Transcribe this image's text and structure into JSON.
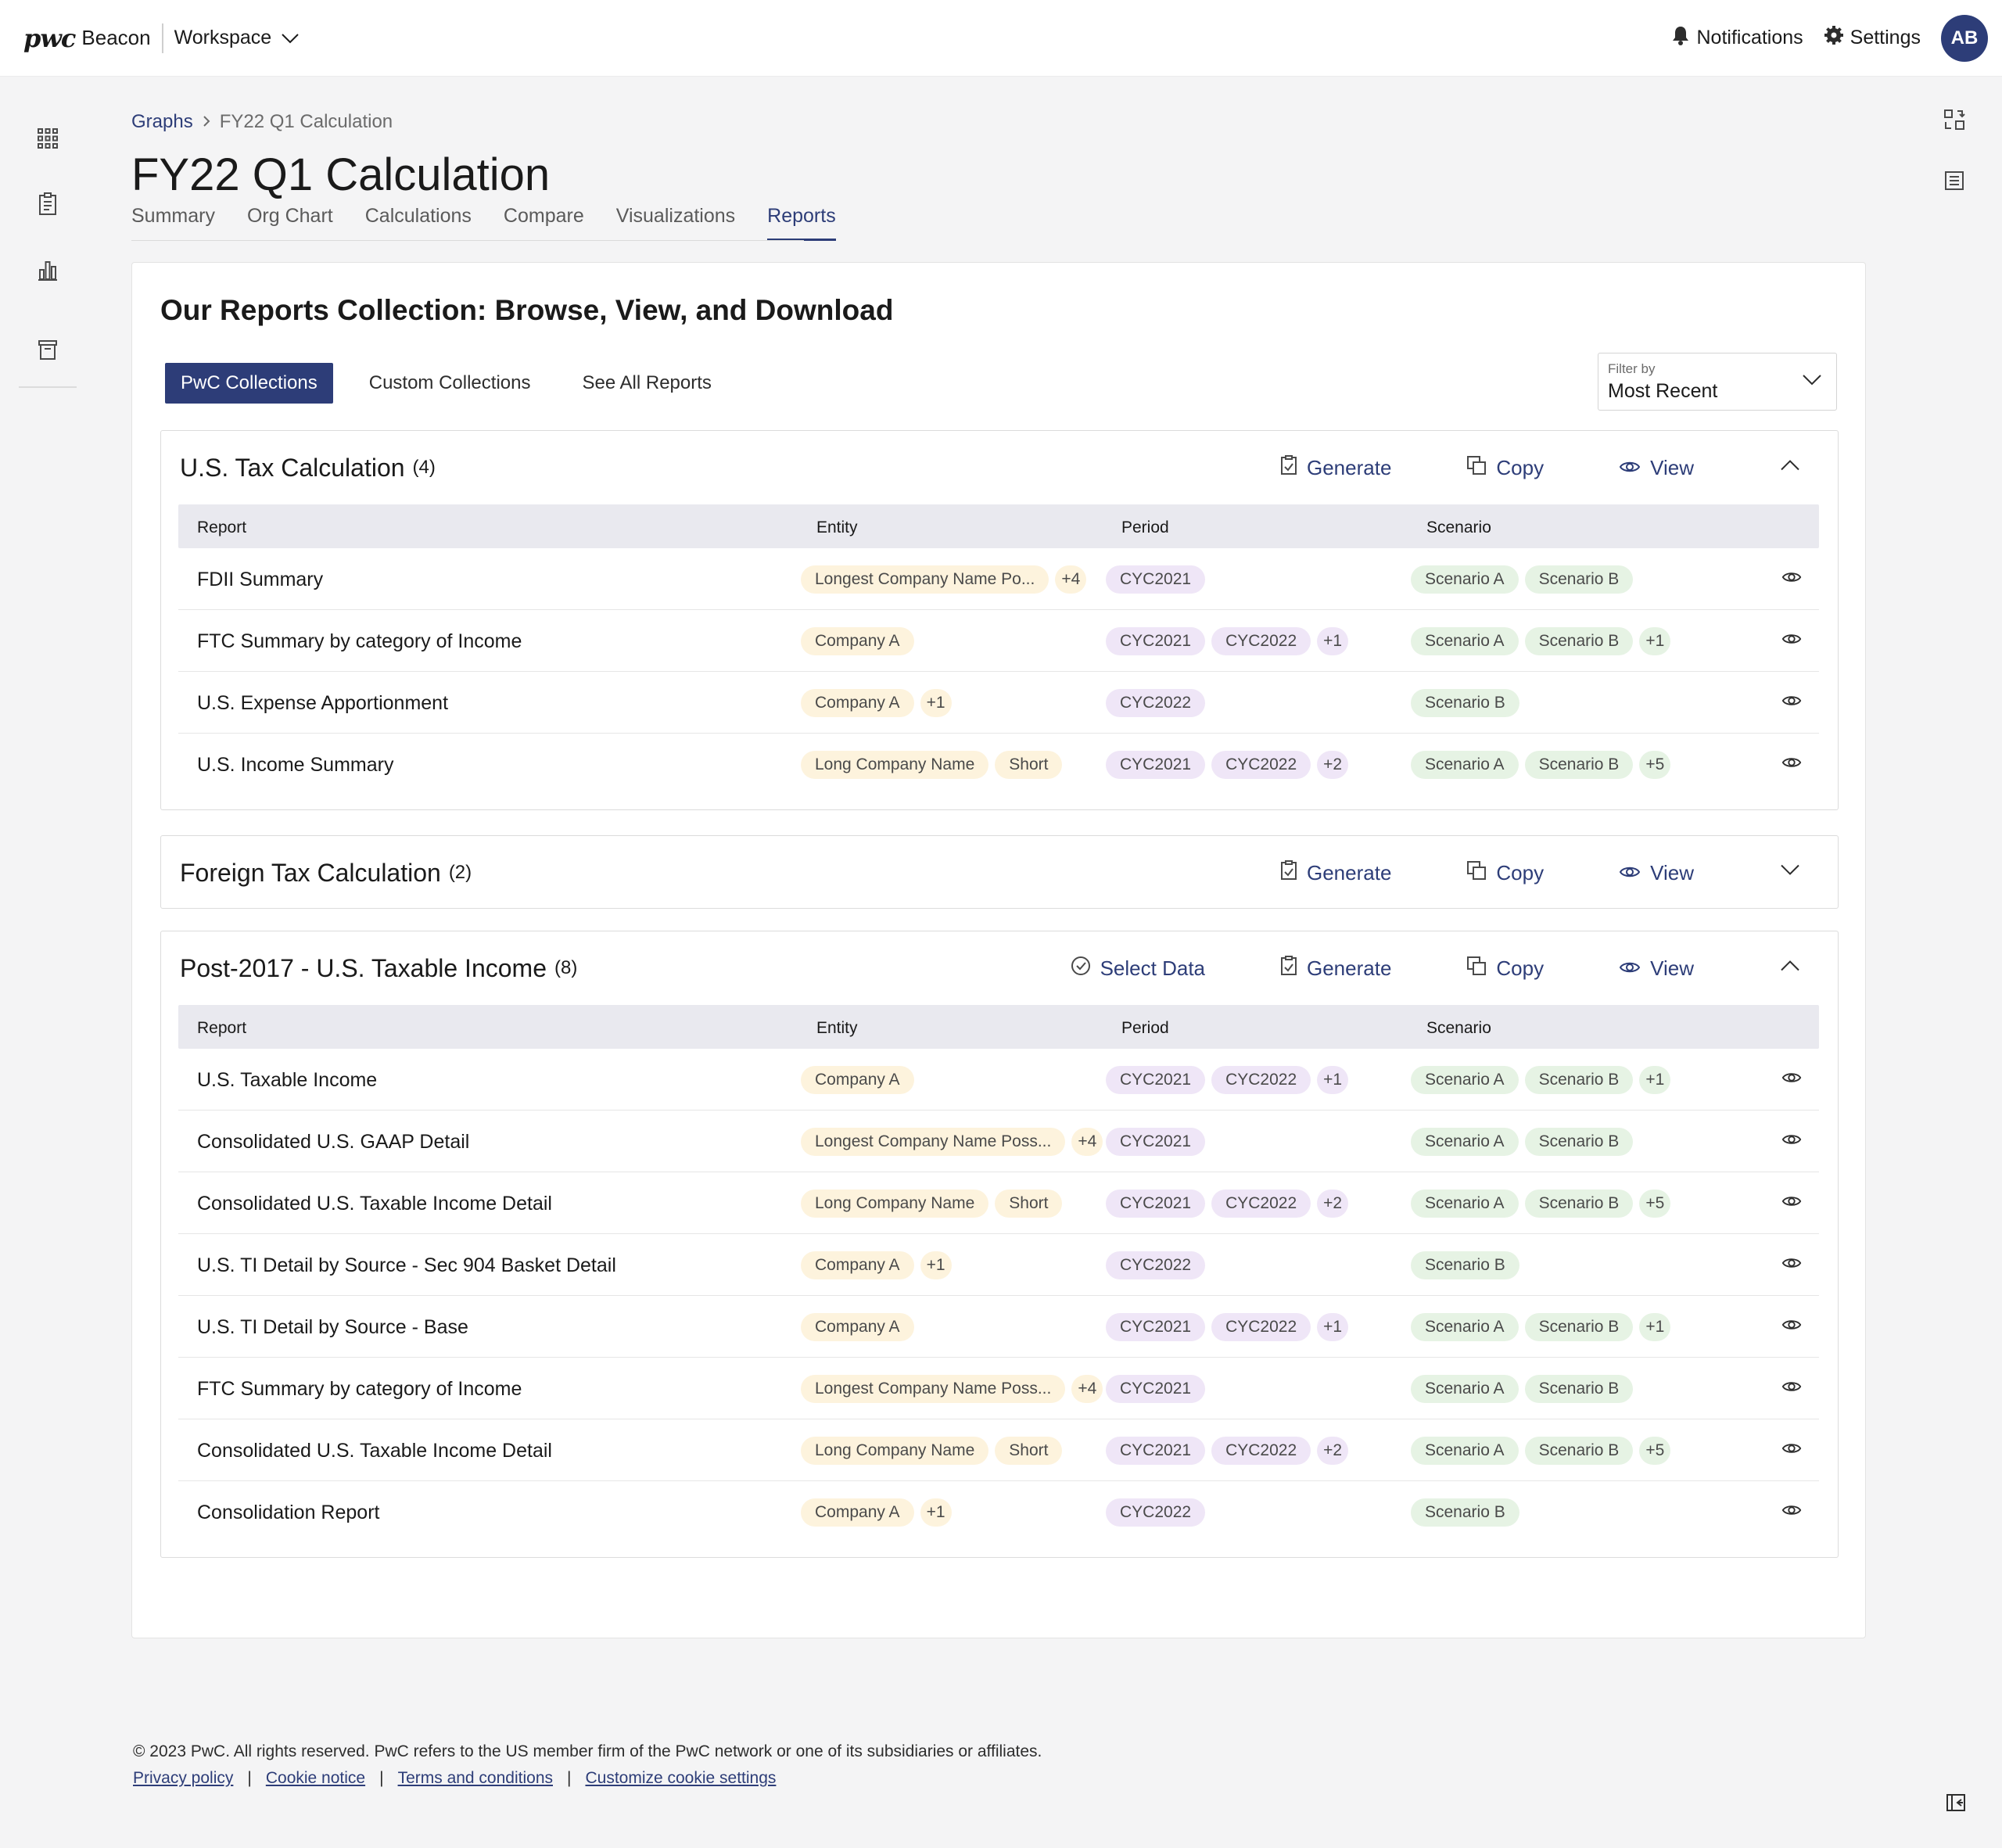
{
  "header": {
    "brand_logo": "pwc",
    "brand_name": "Beacon",
    "workspace_label": "Workspace",
    "notifications_label": "Notifications",
    "settings_label": "Settings",
    "avatar_initials": "AB"
  },
  "breadcrumb": {
    "parent": "Graphs",
    "current": "FY22 Q1 Calculation"
  },
  "page": {
    "title": "FY22 Q1 Calculation"
  },
  "tabs": [
    {
      "label": "Summary"
    },
    {
      "label": "Org Chart"
    },
    {
      "label": "Calculations"
    },
    {
      "label": "Compare"
    },
    {
      "label": "Visualizations"
    },
    {
      "label": "Reports",
      "active": true
    }
  ],
  "card": {
    "title": "Our Reports Collection: Browse, View, and Download",
    "segments": [
      {
        "label": "PwC Collections",
        "active": true
      },
      {
        "label": "Custom Collections"
      },
      {
        "label": "See All Reports"
      }
    ],
    "filter": {
      "label": "Filter by",
      "value": "Most Recent"
    }
  },
  "table_headers": {
    "report": "Report",
    "entity": "Entity",
    "period": "Period",
    "scenario": "Scenario"
  },
  "actions": {
    "select_data": "Select Data",
    "generate": "Generate",
    "copy": "Copy",
    "view": "View"
  },
  "sections": [
    {
      "title": "U.S. Tax Calculation",
      "count": "(4)",
      "expanded": true,
      "rows": [
        {
          "report": "FDII Summary",
          "entity": [
            "Longest Company Name Po..."
          ],
          "entity_more": "+4",
          "period": [
            "CYC2021"
          ],
          "period_more": "",
          "scenario": [
            "Scenario A",
            "Scenario B"
          ],
          "scenario_more": ""
        },
        {
          "report": "FTC Summary by category of Income",
          "entity": [
            "Company A"
          ],
          "entity_more": "",
          "period": [
            "CYC2021",
            "CYC2022"
          ],
          "period_more": "+1",
          "scenario": [
            "Scenario A",
            "Scenario B"
          ],
          "scenario_more": "+1"
        },
        {
          "report": "U.S. Expense Apportionment",
          "entity": [
            "Company A"
          ],
          "entity_more": "+1",
          "period": [
            "CYC2022"
          ],
          "period_more": "",
          "scenario": [
            "Scenario B"
          ],
          "scenario_more": ""
        },
        {
          "report": "U.S. Income Summary",
          "entity": [
            "Long Company Name",
            "Short"
          ],
          "entity_more": "",
          "period": [
            "CYC2021",
            "CYC2022"
          ],
          "period_more": "+2",
          "scenario": [
            "Scenario A",
            "Scenario B"
          ],
          "scenario_more": "+5"
        }
      ]
    },
    {
      "title": "Foreign Tax Calculation",
      "count": "(2)",
      "expanded": false,
      "rows": []
    },
    {
      "title": "Post-2017 - U.S. Taxable Income",
      "count": "(8)",
      "expanded": true,
      "rows": [
        {
          "report": "U.S. Taxable Income",
          "entity": [
            "Company A"
          ],
          "entity_more": "",
          "period": [
            "CYC2021",
            "CYC2022"
          ],
          "period_more": "+1",
          "scenario": [
            "Scenario A",
            "Scenario B"
          ],
          "scenario_more": "+1"
        },
        {
          "report": "Consolidated U.S. GAAP Detail",
          "entity": [
            "Longest Company Name Poss..."
          ],
          "entity_more": "+4",
          "period": [
            "CYC2021"
          ],
          "period_more": "",
          "scenario": [
            "Scenario A",
            "Scenario B"
          ],
          "scenario_more": ""
        },
        {
          "report": "Consolidated U.S. Taxable Income Detail",
          "entity": [
            "Long Company Name",
            "Short"
          ],
          "entity_more": "",
          "period": [
            "CYC2021",
            "CYC2022"
          ],
          "period_more": "+2",
          "scenario": [
            "Scenario A",
            "Scenario B"
          ],
          "scenario_more": "+5"
        },
        {
          "report": "U.S. TI Detail by Source - Sec 904 Basket Detail",
          "entity": [
            "Company A"
          ],
          "entity_more": "+1",
          "period": [
            "CYC2022"
          ],
          "period_more": "",
          "scenario": [
            "Scenario B"
          ],
          "scenario_more": ""
        },
        {
          "report": "U.S. TI Detail by Source - Base",
          "entity": [
            "Company A"
          ],
          "entity_more": "",
          "period": [
            "CYC2021",
            "CYC2022"
          ],
          "period_more": "+1",
          "scenario": [
            "Scenario A",
            "Scenario B"
          ],
          "scenario_more": "+1"
        },
        {
          "report": "FTC Summary by category of Income",
          "entity": [
            "Longest Company Name Poss..."
          ],
          "entity_more": "+4",
          "period": [
            "CYC2021"
          ],
          "period_more": "",
          "scenario": [
            "Scenario A",
            "Scenario B"
          ],
          "scenario_more": ""
        },
        {
          "report": "Consolidated U.S. Taxable Income Detail",
          "entity": [
            "Long Company Name",
            "Short"
          ],
          "entity_more": "",
          "period": [
            "CYC2021",
            "CYC2022"
          ],
          "period_more": "+2",
          "scenario": [
            "Scenario A",
            "Scenario B"
          ],
          "scenario_more": "+5"
        },
        {
          "report": "Consolidation Report",
          "entity": [
            "Company A"
          ],
          "entity_more": "+1",
          "period": [
            "CYC2022"
          ],
          "period_more": "",
          "scenario": [
            "Scenario B"
          ],
          "scenario_more": ""
        }
      ]
    }
  ],
  "footer": {
    "copyright": "© 2023 PwC. All rights reserved. PwC refers to the US member firm of the PwC network or one of its subsidiaries or affiliates.",
    "links": [
      "Privacy policy",
      "Cookie notice",
      "Terms and conditions",
      "Customize cookie settings"
    ]
  },
  "colors": {
    "accent": "#2d3d78",
    "entity_chip": "#fdf3dd",
    "period_chip": "#efe6f7",
    "scenario_chip": "#e6f3e4"
  }
}
